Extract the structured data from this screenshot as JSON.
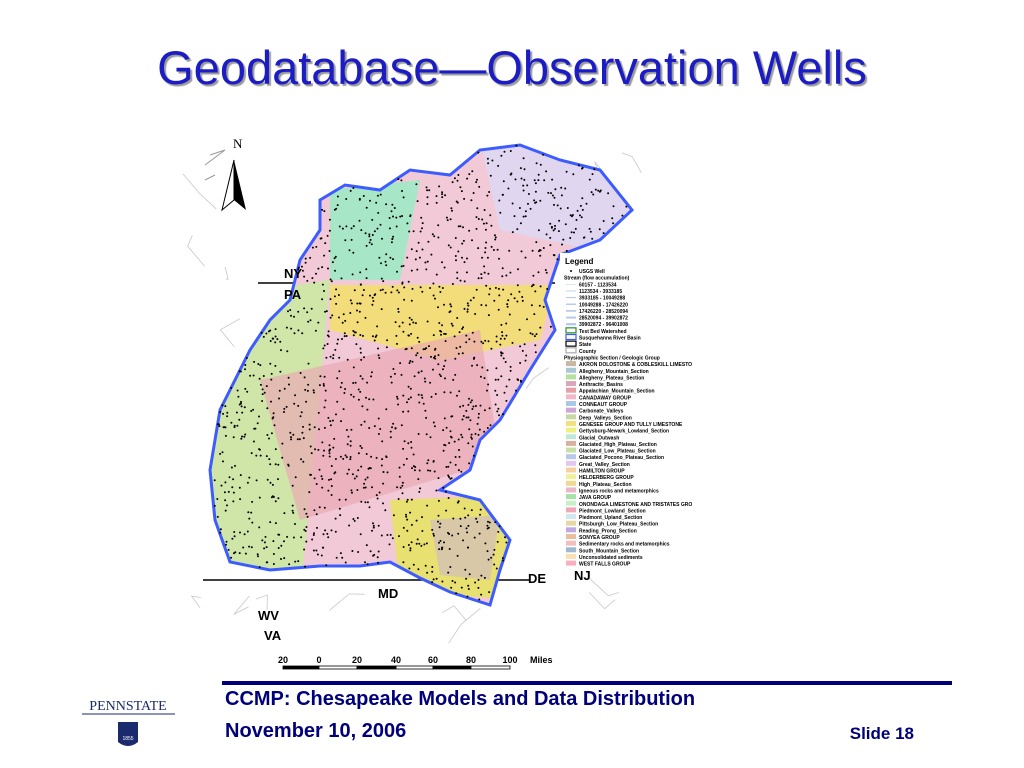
{
  "title": "Geodatabase—Observation Wells",
  "map": {
    "north": "N",
    "state_labels": [
      "NY",
      "PA",
      "MD",
      "WV",
      "VA",
      "DE",
      "NJ"
    ],
    "legend": {
      "title": "Legend",
      "items": [
        "USGS Well",
        "Stream (flow accumulation)",
        "60157 - 1123534",
        "1123534 - 3933185",
        "3933185 - 10049288",
        "10049288 - 17426220",
        "17426220 - 28520094",
        "28520094 - 39902872",
        "39902872 - 96401008",
        "Test Bed Watershed",
        "Susquehanna River Basin",
        "State",
        "County",
        "Physiographic Section / Geologic Group",
        "AKRON DOLOSTONE & COBLESKILL LIMESTO",
        "Allegheny_Mountain_Section",
        "Allegheny_Plateau_Section",
        "Anthracite_Basins",
        "Appalachian_Mountain_Section",
        "CANADAWAY GROUP",
        "CONNEAUT GROUP",
        "Carbonate_Valleys",
        "Deep_Valleys_Section",
        "GENESEE GROUP AND TULLY LIMESTONE",
        "Gettysburg-Newark_Lowland_Section",
        "Glacial_Outwash",
        "Glaciated_High_Plateau_Section",
        "Glaciated_Low_Plateau_Section",
        "Glaciated_Pocono_Plateau_Section",
        "Great_Valley_Section",
        "HAMILTON GROUP",
        "HELDERBERG GROUP",
        "High_Plateau_Section",
        "Igneous rocks and metamorphics",
        "JAVA GROUP",
        "ONONDAGA LIMESTONE AND TRISTATES GRO",
        "Piedmont_Lowland_Section",
        "Piedmont_Upland_Section",
        "Pittsburgh_Low_Plateau_Section",
        "Reading_Prong_Section",
        "SONYEA GROUP",
        "Sedimentary rocks and metamorphics",
        "South_Mountain_Section",
        "Unconsolidated sediments",
        "WEST FALLS GROUP"
      ]
    },
    "scale": {
      "ticks": [
        "20",
        "0",
        "20",
        "40",
        "60",
        "80",
        "100"
      ],
      "unit": "Miles"
    }
  },
  "logo": {
    "name": "PENNSTATE",
    "year": "1855"
  },
  "footer": {
    "line1": "CCMP: Chesapeake Models and Data Distribution",
    "line2": "November 10, 2006",
    "slide": "Slide 18"
  }
}
